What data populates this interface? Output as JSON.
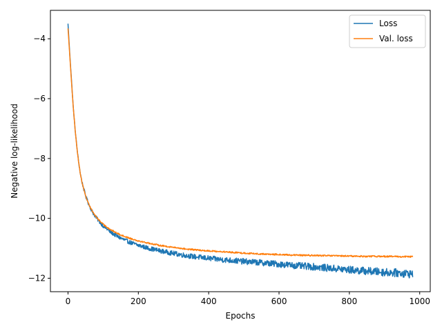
{
  "chart_data": {
    "type": "line",
    "title": "",
    "xlabel": "Epochs",
    "ylabel": "Negative log-likelihood",
    "xlim": [
      -50,
      1030
    ],
    "ylim": [
      -12.45,
      -3.05
    ],
    "xticks": [
      0,
      200,
      400,
      600,
      800,
      1000
    ],
    "xtick_labels": [
      "0",
      "200",
      "400",
      "600",
      "800",
      "1000"
    ],
    "yticks": [
      -4,
      -6,
      -8,
      -10,
      -12
    ],
    "ytick_labels": [
      "−4",
      "−6",
      "−8",
      "−10",
      "−12"
    ],
    "grid": false,
    "legend_position": "top-right",
    "series": [
      {
        "name": "Loss",
        "color": "#1f77b4",
        "x": [
          0,
          5,
          10,
          15,
          20,
          25,
          30,
          35,
          40,
          50,
          60,
          70,
          80,
          90,
          100,
          120,
          140,
          160,
          180,
          200,
          230,
          260,
          300,
          340,
          380,
          420,
          460,
          500,
          550,
          600,
          650,
          700,
          750,
          800,
          850,
          900,
          950,
          980
        ],
        "y": [
          -3.5,
          -4.5,
          -5.4,
          -6.3,
          -7.0,
          -7.6,
          -8.1,
          -8.5,
          -8.8,
          -9.25,
          -9.55,
          -9.8,
          -9.97,
          -10.12,
          -10.25,
          -10.45,
          -10.6,
          -10.72,
          -10.82,
          -10.9,
          -11.0,
          -11.08,
          -11.17,
          -11.25,
          -11.31,
          -11.36,
          -11.4,
          -11.44,
          -11.48,
          -11.53,
          -11.58,
          -11.62,
          -11.67,
          -11.72,
          -11.76,
          -11.8,
          -11.83,
          -11.86
        ]
      },
      {
        "name": "Val. loss",
        "color": "#ff7f0e",
        "x": [
          0,
          5,
          10,
          15,
          20,
          25,
          30,
          35,
          40,
          50,
          60,
          70,
          80,
          90,
          100,
          120,
          140,
          160,
          180,
          200,
          230,
          260,
          300,
          340,
          380,
          420,
          460,
          500,
          550,
          600,
          650,
          700,
          750,
          800,
          850,
          900,
          950,
          980
        ],
        "y": [
          -3.65,
          -4.55,
          -5.45,
          -6.3,
          -7.0,
          -7.6,
          -8.1,
          -8.5,
          -8.8,
          -9.25,
          -9.55,
          -9.78,
          -9.95,
          -10.08,
          -10.2,
          -10.37,
          -10.5,
          -10.6,
          -10.68,
          -10.75,
          -10.83,
          -10.9,
          -10.97,
          -11.03,
          -11.07,
          -11.1,
          -11.13,
          -11.16,
          -11.19,
          -11.21,
          -11.23,
          -11.24,
          -11.25,
          -11.26,
          -11.27,
          -11.27,
          -11.28,
          -11.28
        ]
      }
    ]
  }
}
